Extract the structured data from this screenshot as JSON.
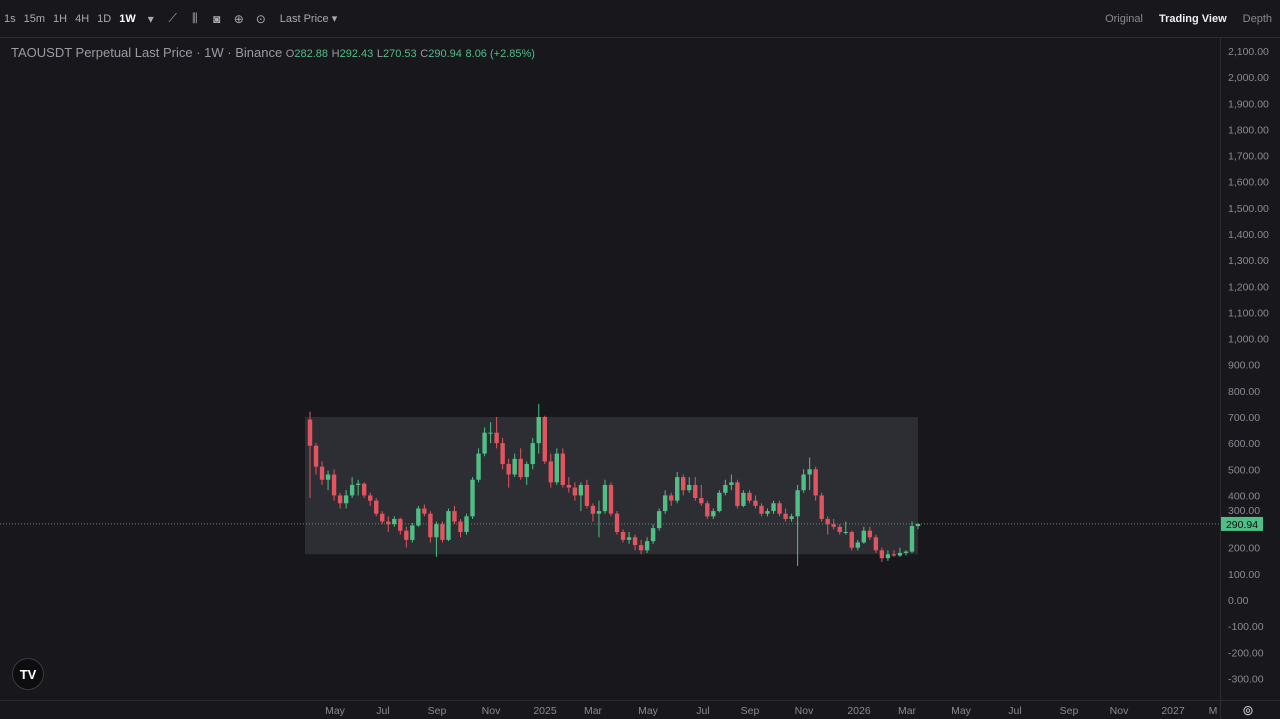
{
  "toolbar": {
    "timeframes": [
      "1s",
      "15m",
      "1H",
      "4H",
      "1D",
      "1W"
    ],
    "active_timeframe": "1W",
    "icons": [
      "chevron-down-icon",
      "indicators-icon",
      "candle-type-icon",
      "camera-icon",
      "plus-circle-icon",
      "settings-circle-icon"
    ],
    "price_type": "Last Price",
    "views": [
      "Original",
      "Trading View",
      "Depth"
    ],
    "active_view": "Trading View"
  },
  "legend": {
    "title": "TAOUSDT Perpetual Last Price · 1W · Binance",
    "o_label": "O",
    "o": "282.88",
    "h_label": "H",
    "h": "292.43",
    "l_label": "L",
    "l": "270.53",
    "c_label": "C",
    "c": "290.94",
    "change": "8.06 (+2.85%)"
  },
  "colors": {
    "up": "#4fbf86",
    "down": "#e0555f",
    "background": "#17171c",
    "range_box": "#2d2e33",
    "last_price_badge": "#4fbf86"
  },
  "chart_data": {
    "type": "candlestick",
    "symbol": "TAOUSDT Perpetual",
    "interval": "1W",
    "ylim": [
      -350,
      2150
    ],
    "y_ticks": [
      "2,100.00",
      "2,000.00",
      "1,900.00",
      "1,800.00",
      "1,700.00",
      "1,600.00",
      "1,500.00",
      "1,400.00",
      "1,300.00",
      "1,200.00",
      "1,100.00",
      "1,000.00",
      "900.00",
      "800.00",
      "700.00",
      "600.00",
      "500.00",
      "400.00",
      "300.00",
      "200.00",
      "100.00",
      "0.00",
      "-100.00",
      "-200.00",
      "-300.00"
    ],
    "x_ticks": [
      "May",
      "Jul",
      "Sep",
      "Nov",
      "2025",
      "Mar",
      "May",
      "Jul",
      "Sep",
      "Nov",
      "2026",
      "Mar",
      "May",
      "Jul",
      "Sep",
      "Nov",
      "2027",
      "M"
    ],
    "last_price": 290.94,
    "last_price_label": "290.94",
    "range_box": {
      "top": 700,
      "bottom": 175
    },
    "grid": false,
    "candles_ohlc": [
      [
        690,
        720,
        390,
        590
      ],
      [
        590,
        600,
        480,
        510
      ],
      [
        510,
        530,
        440,
        460
      ],
      [
        460,
        495,
        420,
        480
      ],
      [
        480,
        500,
        380,
        400
      ],
      [
        400,
        410,
        350,
        370
      ],
      [
        370,
        420,
        350,
        400
      ],
      [
        400,
        470,
        390,
        440
      ],
      [
        440,
        460,
        400,
        445
      ],
      [
        445,
        450,
        390,
        400
      ],
      [
        400,
        410,
        360,
        380
      ],
      [
        380,
        390,
        320,
        330
      ],
      [
        330,
        340,
        290,
        300
      ],
      [
        300,
        320,
        260,
        290
      ],
      [
        290,
        320,
        280,
        310
      ],
      [
        310,
        315,
        250,
        265
      ],
      [
        265,
        280,
        200,
        230
      ],
      [
        230,
        295,
        220,
        285
      ],
      [
        285,
        360,
        280,
        350
      ],
      [
        350,
        365,
        320,
        330
      ],
      [
        330,
        340,
        220,
        240
      ],
      [
        240,
        300,
        165,
        290
      ],
      [
        290,
        300,
        220,
        230
      ],
      [
        230,
        350,
        225,
        340
      ],
      [
        340,
        360,
        290,
        300
      ],
      [
        300,
        310,
        240,
        260
      ],
      [
        260,
        330,
        250,
        320
      ],
      [
        320,
        470,
        310,
        460
      ],
      [
        460,
        580,
        450,
        560
      ],
      [
        560,
        660,
        550,
        640
      ],
      [
        640,
        680,
        600,
        640
      ],
      [
        640,
        700,
        580,
        600
      ],
      [
        600,
        620,
        500,
        520
      ],
      [
        520,
        540,
        430,
        480
      ],
      [
        480,
        560,
        470,
        540
      ],
      [
        540,
        580,
        460,
        470
      ],
      [
        470,
        530,
        440,
        520
      ],
      [
        520,
        620,
        500,
        600
      ],
      [
        600,
        750,
        560,
        700
      ],
      [
        700,
        705,
        520,
        530
      ],
      [
        530,
        560,
        430,
        450
      ],
      [
        450,
        580,
        440,
        560
      ],
      [
        560,
        580,
        430,
        440
      ],
      [
        440,
        470,
        410,
        430
      ],
      [
        430,
        450,
        380,
        400
      ],
      [
        400,
        450,
        340,
        440
      ],
      [
        440,
        460,
        350,
        360
      ],
      [
        360,
        370,
        300,
        330
      ],
      [
        330,
        380,
        240,
        340
      ],
      [
        340,
        460,
        330,
        440
      ],
      [
        440,
        450,
        320,
        330
      ],
      [
        330,
        340,
        250,
        260
      ],
      [
        260,
        270,
        220,
        230
      ],
      [
        230,
        260,
        215,
        240
      ],
      [
        240,
        250,
        190,
        210
      ],
      [
        210,
        230,
        175,
        190
      ],
      [
        190,
        240,
        180,
        225
      ],
      [
        225,
        290,
        215,
        275
      ],
      [
        275,
        350,
        265,
        340
      ],
      [
        340,
        420,
        330,
        400
      ],
      [
        400,
        410,
        360,
        380
      ],
      [
        380,
        490,
        370,
        470
      ],
      [
        470,
        480,
        400,
        420
      ],
      [
        420,
        470,
        410,
        440
      ],
      [
        440,
        470,
        380,
        390
      ],
      [
        390,
        440,
        360,
        370
      ],
      [
        370,
        380,
        310,
        320
      ],
      [
        320,
        350,
        310,
        340
      ],
      [
        340,
        420,
        335,
        410
      ],
      [
        410,
        460,
        400,
        440
      ],
      [
        440,
        480,
        420,
        450
      ],
      [
        450,
        460,
        350,
        360
      ],
      [
        360,
        420,
        355,
        410
      ],
      [
        410,
        420,
        370,
        380
      ],
      [
        380,
        400,
        350,
        360
      ],
      [
        360,
        370,
        320,
        330
      ],
      [
        330,
        350,
        320,
        340
      ],
      [
        340,
        380,
        330,
        370
      ],
      [
        370,
        380,
        320,
        330
      ],
      [
        330,
        350,
        300,
        310
      ],
      [
        310,
        330,
        300,
        320
      ],
      [
        320,
        440,
        130,
        420
      ],
      [
        420,
        500,
        410,
        480
      ],
      [
        480,
        545,
        420,
        500
      ],
      [
        500,
        510,
        380,
        400
      ],
      [
        400,
        410,
        300,
        310
      ],
      [
        310,
        320,
        250,
        290
      ],
      [
        290,
        310,
        270,
        280
      ],
      [
        280,
        290,
        250,
        260
      ],
      [
        260,
        300,
        250,
        260
      ],
      [
        260,
        265,
        190,
        200
      ],
      [
        200,
        230,
        190,
        220
      ],
      [
        220,
        280,
        215,
        265
      ],
      [
        265,
        280,
        230,
        240
      ],
      [
        240,
        250,
        180,
        190
      ],
      [
        190,
        200,
        145,
        160
      ],
      [
        160,
        190,
        150,
        175
      ],
      [
        175,
        190,
        165,
        170
      ],
      [
        170,
        200,
        165,
        180
      ],
      [
        180,
        190,
        170,
        185
      ],
      [
        185,
        300,
        180,
        282.88
      ],
      [
        282.88,
        292.43,
        270.53,
        290.94
      ]
    ]
  }
}
